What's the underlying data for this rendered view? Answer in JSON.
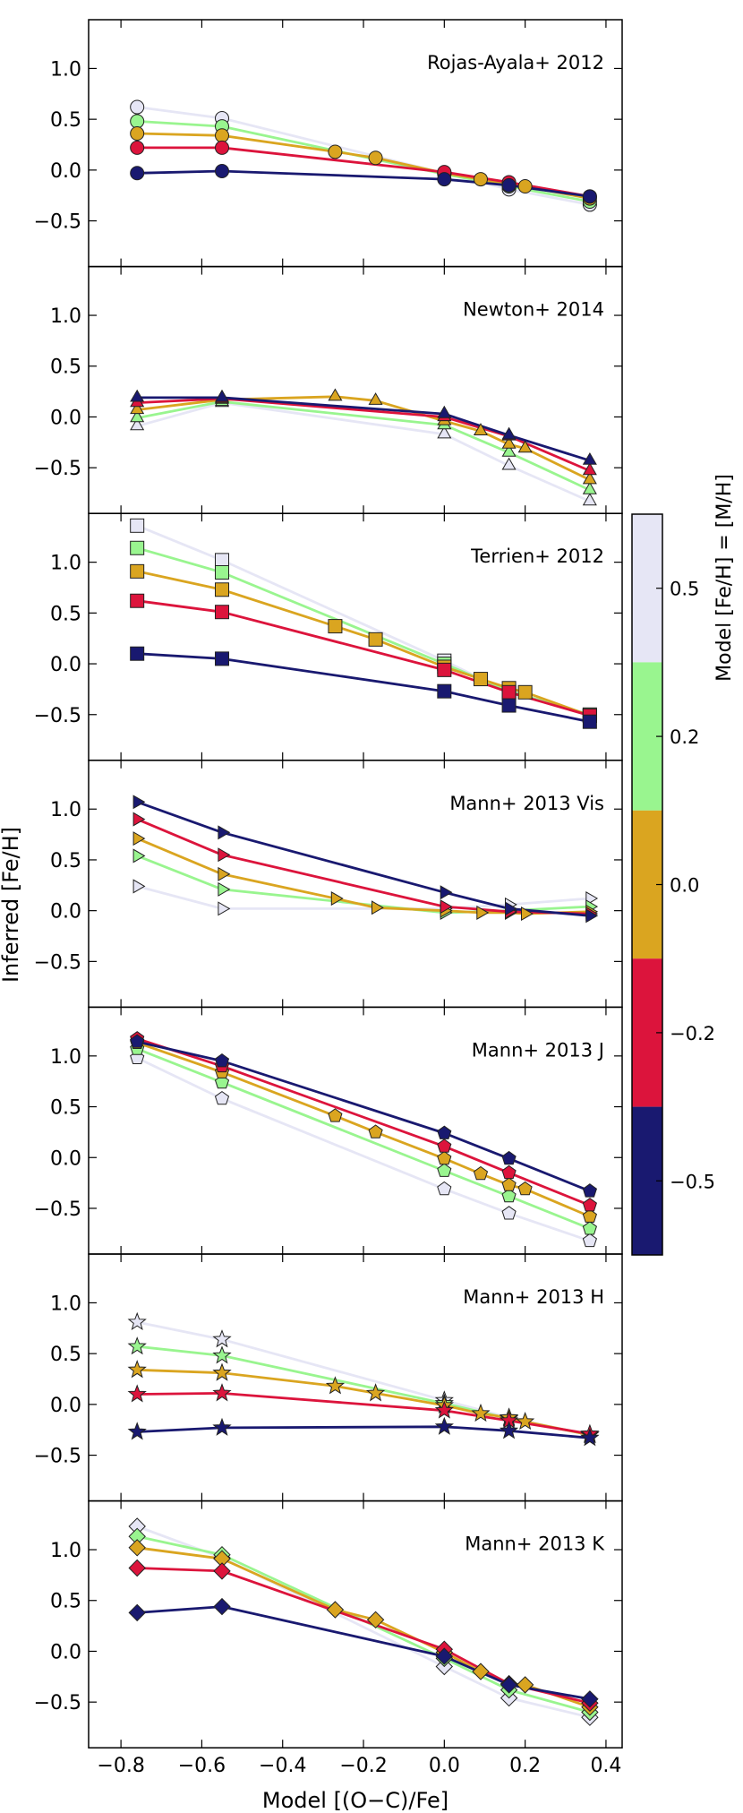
{
  "figure": {
    "xlabel": "Model [(O−C)/Fe]",
    "ylabel": "Inferred [Fe/H]",
    "xlim": [
      -0.88,
      0.44
    ],
    "ylim": [
      -0.95,
      1.48
    ],
    "xticks": [
      -0.8,
      -0.6,
      -0.4,
      -0.2,
      0.0,
      0.2,
      0.4
    ],
    "xtick_labels": [
      "−0.8",
      "−0.6",
      "−0.4",
      "−0.2",
      "0.0",
      "0.2",
      "0.4"
    ],
    "yticks": [
      -0.5,
      0.0,
      0.5,
      1.0
    ],
    "ytick_labels": [
      "−0.5",
      "0.0",
      "0.5",
      "1.0"
    ]
  },
  "colorbar": {
    "label": "Model [Fe/H] = [M/H]",
    "tick_labels": [
      "0.5",
      "0.2",
      "0.0",
      "−0.2",
      "−0.5"
    ],
    "colors": [
      "#e6e6f5",
      "#99f58f",
      "#daa520",
      "#dc143c",
      "#191970"
    ]
  },
  "chart_data": [
    {
      "type": "line",
      "title": "Rojas-Ayala+ 2012",
      "marker": "circle",
      "series": [
        {
          "name": "0.5",
          "color": "#e6e6f5",
          "points": [
            [
              -0.76,
              0.62
            ],
            [
              -0.55,
              0.51
            ],
            [
              0.0,
              -0.03
            ],
            [
              0.16,
              -0.19
            ],
            [
              0.36,
              -0.34
            ]
          ]
        },
        {
          "name": "0.2",
          "color": "#99f58f",
          "points": [
            [
              -0.76,
              0.48
            ],
            [
              -0.55,
              0.43
            ],
            [
              0.0,
              -0.04
            ],
            [
              0.16,
              -0.16
            ],
            [
              0.36,
              -0.31
            ]
          ]
        },
        {
          "name": "0.0",
          "color": "#daa520",
          "points": [
            [
              -0.76,
              0.36
            ],
            [
              -0.55,
              0.34
            ],
            [
              -0.27,
              0.18
            ],
            [
              -0.17,
              0.12
            ],
            [
              0.0,
              -0.03
            ],
            [
              0.09,
              -0.09
            ],
            [
              0.16,
              -0.14
            ],
            [
              0.2,
              -0.16
            ],
            [
              0.36,
              -0.28
            ]
          ]
        },
        {
          "name": "-0.2",
          "color": "#dc143c",
          "points": [
            [
              -0.76,
              0.22
            ],
            [
              -0.55,
              0.22
            ],
            [
              0.0,
              -0.02
            ],
            [
              0.16,
              -0.12
            ],
            [
              0.36,
              -0.26
            ]
          ]
        },
        {
          "name": "-0.5",
          "color": "#191970",
          "points": [
            [
              -0.76,
              -0.03
            ],
            [
              -0.55,
              -0.01
            ],
            [
              0.0,
              -0.09
            ],
            [
              0.16,
              -0.15
            ],
            [
              0.36,
              -0.26
            ]
          ]
        }
      ]
    },
    {
      "type": "line",
      "title": "Newton+ 2014",
      "marker": "triangle-up",
      "series": [
        {
          "name": "0.5",
          "color": "#e6e6f5",
          "points": [
            [
              -0.76,
              -0.09
            ],
            [
              -0.55,
              0.14
            ],
            [
              0.0,
              -0.17
            ],
            [
              0.16,
              -0.48
            ],
            [
              0.36,
              -0.83
            ]
          ]
        },
        {
          "name": "0.2",
          "color": "#99f58f",
          "points": [
            [
              -0.76,
              -0.01
            ],
            [
              -0.55,
              0.15
            ],
            [
              0.0,
              -0.08
            ],
            [
              0.16,
              -0.35
            ],
            [
              0.36,
              -0.72
            ]
          ]
        },
        {
          "name": "0.0",
          "color": "#daa520",
          "points": [
            [
              -0.76,
              0.07
            ],
            [
              -0.55,
              0.17
            ],
            [
              -0.27,
              0.2
            ],
            [
              -0.17,
              0.16
            ],
            [
              0.0,
              -0.04
            ],
            [
              0.09,
              -0.14
            ],
            [
              0.16,
              -0.27
            ],
            [
              0.2,
              -0.31
            ],
            [
              0.36,
              -0.62
            ]
          ]
        },
        {
          "name": "-0.2",
          "color": "#dc143c",
          "points": [
            [
              -0.76,
              0.14
            ],
            [
              -0.55,
              0.18
            ],
            [
              0.0,
              0.0
            ],
            [
              0.16,
              -0.19
            ],
            [
              0.36,
              -0.53
            ]
          ]
        },
        {
          "name": "-0.5",
          "color": "#191970",
          "points": [
            [
              -0.76,
              0.19
            ],
            [
              -0.55,
              0.19
            ],
            [
              0.0,
              0.03
            ],
            [
              0.16,
              -0.18
            ],
            [
              0.36,
              -0.43
            ]
          ]
        }
      ]
    },
    {
      "type": "line",
      "title": "Terrien+ 2012",
      "marker": "square",
      "series": [
        {
          "name": "0.5",
          "color": "#e6e6f5",
          "points": [
            [
              -0.76,
              1.36
            ],
            [
              -0.55,
              1.02
            ],
            [
              0.0,
              0.03
            ],
            [
              0.16,
              -0.28
            ],
            [
              0.36,
              -0.51
            ]
          ]
        },
        {
          "name": "0.2",
          "color": "#99f58f",
          "points": [
            [
              -0.76,
              1.14
            ],
            [
              -0.55,
              0.9
            ],
            [
              0.0,
              0.0
            ],
            [
              0.16,
              -0.27
            ],
            [
              0.36,
              -0.5
            ]
          ]
        },
        {
          "name": "0.0",
          "color": "#daa520",
          "points": [
            [
              -0.76,
              0.91
            ],
            [
              -0.55,
              0.73
            ],
            [
              -0.27,
              0.37
            ],
            [
              -0.17,
              0.24
            ],
            [
              0.0,
              -0.03
            ],
            [
              0.09,
              -0.15
            ],
            [
              0.16,
              -0.24
            ],
            [
              0.2,
              -0.28
            ],
            [
              0.36,
              -0.51
            ]
          ]
        },
        {
          "name": "-0.2",
          "color": "#dc143c",
          "points": [
            [
              -0.76,
              0.62
            ],
            [
              -0.55,
              0.51
            ],
            [
              0.0,
              -0.06
            ],
            [
              0.16,
              -0.28
            ],
            [
              0.36,
              -0.51
            ]
          ]
        },
        {
          "name": "-0.5",
          "color": "#191970",
          "points": [
            [
              -0.76,
              0.1
            ],
            [
              -0.55,
              0.05
            ],
            [
              0.0,
              -0.27
            ],
            [
              0.16,
              -0.41
            ],
            [
              0.36,
              -0.57
            ]
          ]
        }
      ]
    },
    {
      "type": "line",
      "title": "Mann+ 2013 Vis",
      "marker": "triangle-right",
      "series": [
        {
          "name": "0.5",
          "color": "#e6e6f5",
          "points": [
            [
              -0.76,
              0.24
            ],
            [
              -0.55,
              0.02
            ],
            [
              0.0,
              0.02
            ],
            [
              0.16,
              0.06
            ],
            [
              0.36,
              0.12
            ]
          ]
        },
        {
          "name": "0.2",
          "color": "#99f58f",
          "points": [
            [
              -0.76,
              0.54
            ],
            [
              -0.55,
              0.21
            ],
            [
              0.0,
              -0.02
            ],
            [
              0.16,
              0.0
            ],
            [
              0.36,
              0.04
            ]
          ]
        },
        {
          "name": "0.0",
          "color": "#daa520",
          "points": [
            [
              -0.76,
              0.71
            ],
            [
              -0.55,
              0.36
            ],
            [
              -0.27,
              0.12
            ],
            [
              -0.17,
              0.03
            ],
            [
              0.0,
              0.0
            ],
            [
              0.09,
              -0.02
            ],
            [
              0.16,
              -0.02
            ],
            [
              0.2,
              -0.03
            ],
            [
              0.36,
              -0.01
            ]
          ]
        },
        {
          "name": "-0.2",
          "color": "#dc143c",
          "points": [
            [
              -0.76,
              0.9
            ],
            [
              -0.55,
              0.55
            ],
            [
              0.0,
              0.04
            ],
            [
              0.16,
              -0.01
            ],
            [
              0.36,
              -0.03
            ]
          ]
        },
        {
          "name": "-0.5",
          "color": "#191970",
          "points": [
            [
              -0.76,
              1.07
            ],
            [
              -0.55,
              0.77
            ],
            [
              0.0,
              0.18
            ],
            [
              0.16,
              0.02
            ],
            [
              0.36,
              -0.05
            ]
          ]
        }
      ]
    },
    {
      "type": "line",
      "title": "Mann+ 2013 J",
      "marker": "pentagon",
      "series": [
        {
          "name": "0.5",
          "color": "#e6e6f5",
          "points": [
            [
              -0.76,
              0.98
            ],
            [
              -0.55,
              0.58
            ],
            [
              0.0,
              -0.31
            ],
            [
              0.16,
              -0.55
            ],
            [
              0.36,
              -0.82
            ]
          ]
        },
        {
          "name": "0.2",
          "color": "#99f58f",
          "points": [
            [
              -0.76,
              1.07
            ],
            [
              -0.55,
              0.74
            ],
            [
              0.0,
              -0.13
            ],
            [
              0.16,
              -0.38
            ],
            [
              0.36,
              -0.7
            ]
          ]
        },
        {
          "name": "0.0",
          "color": "#daa520",
          "points": [
            [
              -0.76,
              1.13
            ],
            [
              -0.55,
              0.84
            ],
            [
              -0.27,
              0.41
            ],
            [
              -0.17,
              0.25
            ],
            [
              0.0,
              -0.01
            ],
            [
              0.09,
              -0.16
            ],
            [
              0.16,
              -0.27
            ],
            [
              0.2,
              -0.31
            ],
            [
              0.36,
              -0.58
            ]
          ]
        },
        {
          "name": "-0.2",
          "color": "#dc143c",
          "points": [
            [
              -0.76,
              1.17
            ],
            [
              -0.55,
              0.9
            ],
            [
              0.0,
              0.11
            ],
            [
              0.16,
              -0.15
            ],
            [
              0.36,
              -0.47
            ]
          ]
        },
        {
          "name": "-0.5",
          "color": "#191970",
          "points": [
            [
              -0.76,
              1.14
            ],
            [
              -0.55,
              0.95
            ],
            [
              0.0,
              0.24
            ],
            [
              0.16,
              -0.01
            ],
            [
              0.36,
              -0.33
            ]
          ]
        }
      ]
    },
    {
      "type": "line",
      "title": "Mann+ 2013 H",
      "marker": "star",
      "series": [
        {
          "name": "0.5",
          "color": "#e6e6f5",
          "points": [
            [
              -0.76,
              0.81
            ],
            [
              -0.55,
              0.64
            ],
            [
              0.0,
              0.04
            ],
            [
              0.16,
              -0.13
            ],
            [
              0.36,
              -0.3
            ]
          ]
        },
        {
          "name": "0.2",
          "color": "#99f58f",
          "points": [
            [
              -0.76,
              0.57
            ],
            [
              -0.55,
              0.48
            ],
            [
              0.0,
              0.01
            ],
            [
              0.16,
              -0.14
            ],
            [
              0.36,
              -0.3
            ]
          ]
        },
        {
          "name": "0.0",
          "color": "#daa520",
          "points": [
            [
              -0.76,
              0.34
            ],
            [
              -0.55,
              0.31
            ],
            [
              -0.27,
              0.18
            ],
            [
              -0.17,
              0.11
            ],
            [
              0.0,
              -0.01
            ],
            [
              0.09,
              -0.09
            ],
            [
              0.16,
              -0.13
            ],
            [
              0.2,
              -0.17
            ],
            [
              0.36,
              -0.3
            ]
          ]
        },
        {
          "name": "-0.2",
          "color": "#dc143c",
          "points": [
            [
              -0.76,
              0.1
            ],
            [
              -0.55,
              0.11
            ],
            [
              0.0,
              -0.06
            ],
            [
              0.16,
              -0.16
            ],
            [
              0.36,
              -0.29
            ]
          ]
        },
        {
          "name": "-0.5",
          "color": "#191970",
          "points": [
            [
              -0.76,
              -0.27
            ],
            [
              -0.55,
              -0.23
            ],
            [
              0.0,
              -0.22
            ],
            [
              0.16,
              -0.26
            ],
            [
              0.36,
              -0.33
            ]
          ]
        }
      ]
    },
    {
      "type": "line",
      "title": "Mann+ 2013 K",
      "marker": "diamond",
      "series": [
        {
          "name": "0.5",
          "color": "#e6e6f5",
          "points": [
            [
              -0.76,
              1.23
            ],
            [
              -0.55,
              0.92
            ],
            [
              0.0,
              -0.15
            ],
            [
              0.16,
              -0.46
            ],
            [
              0.36,
              -0.65
            ]
          ]
        },
        {
          "name": "0.2",
          "color": "#99f58f",
          "points": [
            [
              -0.76,
              1.13
            ],
            [
              -0.55,
              0.95
            ],
            [
              0.0,
              -0.07
            ],
            [
              0.16,
              -0.38
            ],
            [
              0.36,
              -0.6
            ]
          ]
        },
        {
          "name": "0.0",
          "color": "#daa520",
          "points": [
            [
              -0.76,
              1.02
            ],
            [
              -0.55,
              0.91
            ],
            [
              -0.27,
              0.41
            ],
            [
              -0.17,
              0.31
            ],
            [
              0.0,
              -0.01
            ],
            [
              0.09,
              -0.2
            ],
            [
              0.16,
              -0.32
            ],
            [
              0.2,
              -0.33
            ],
            [
              0.36,
              -0.55
            ]
          ]
        },
        {
          "name": "-0.2",
          "color": "#dc143c",
          "points": [
            [
              -0.76,
              0.82
            ],
            [
              -0.55,
              0.79
            ],
            [
              0.0,
              0.02
            ],
            [
              0.16,
              -0.32
            ],
            [
              0.36,
              -0.51
            ]
          ]
        },
        {
          "name": "-0.5",
          "color": "#191970",
          "points": [
            [
              -0.76,
              0.38
            ],
            [
              -0.55,
              0.44
            ],
            [
              0.0,
              -0.05
            ],
            [
              0.16,
              -0.33
            ],
            [
              0.36,
              -0.47
            ]
          ]
        }
      ]
    }
  ]
}
